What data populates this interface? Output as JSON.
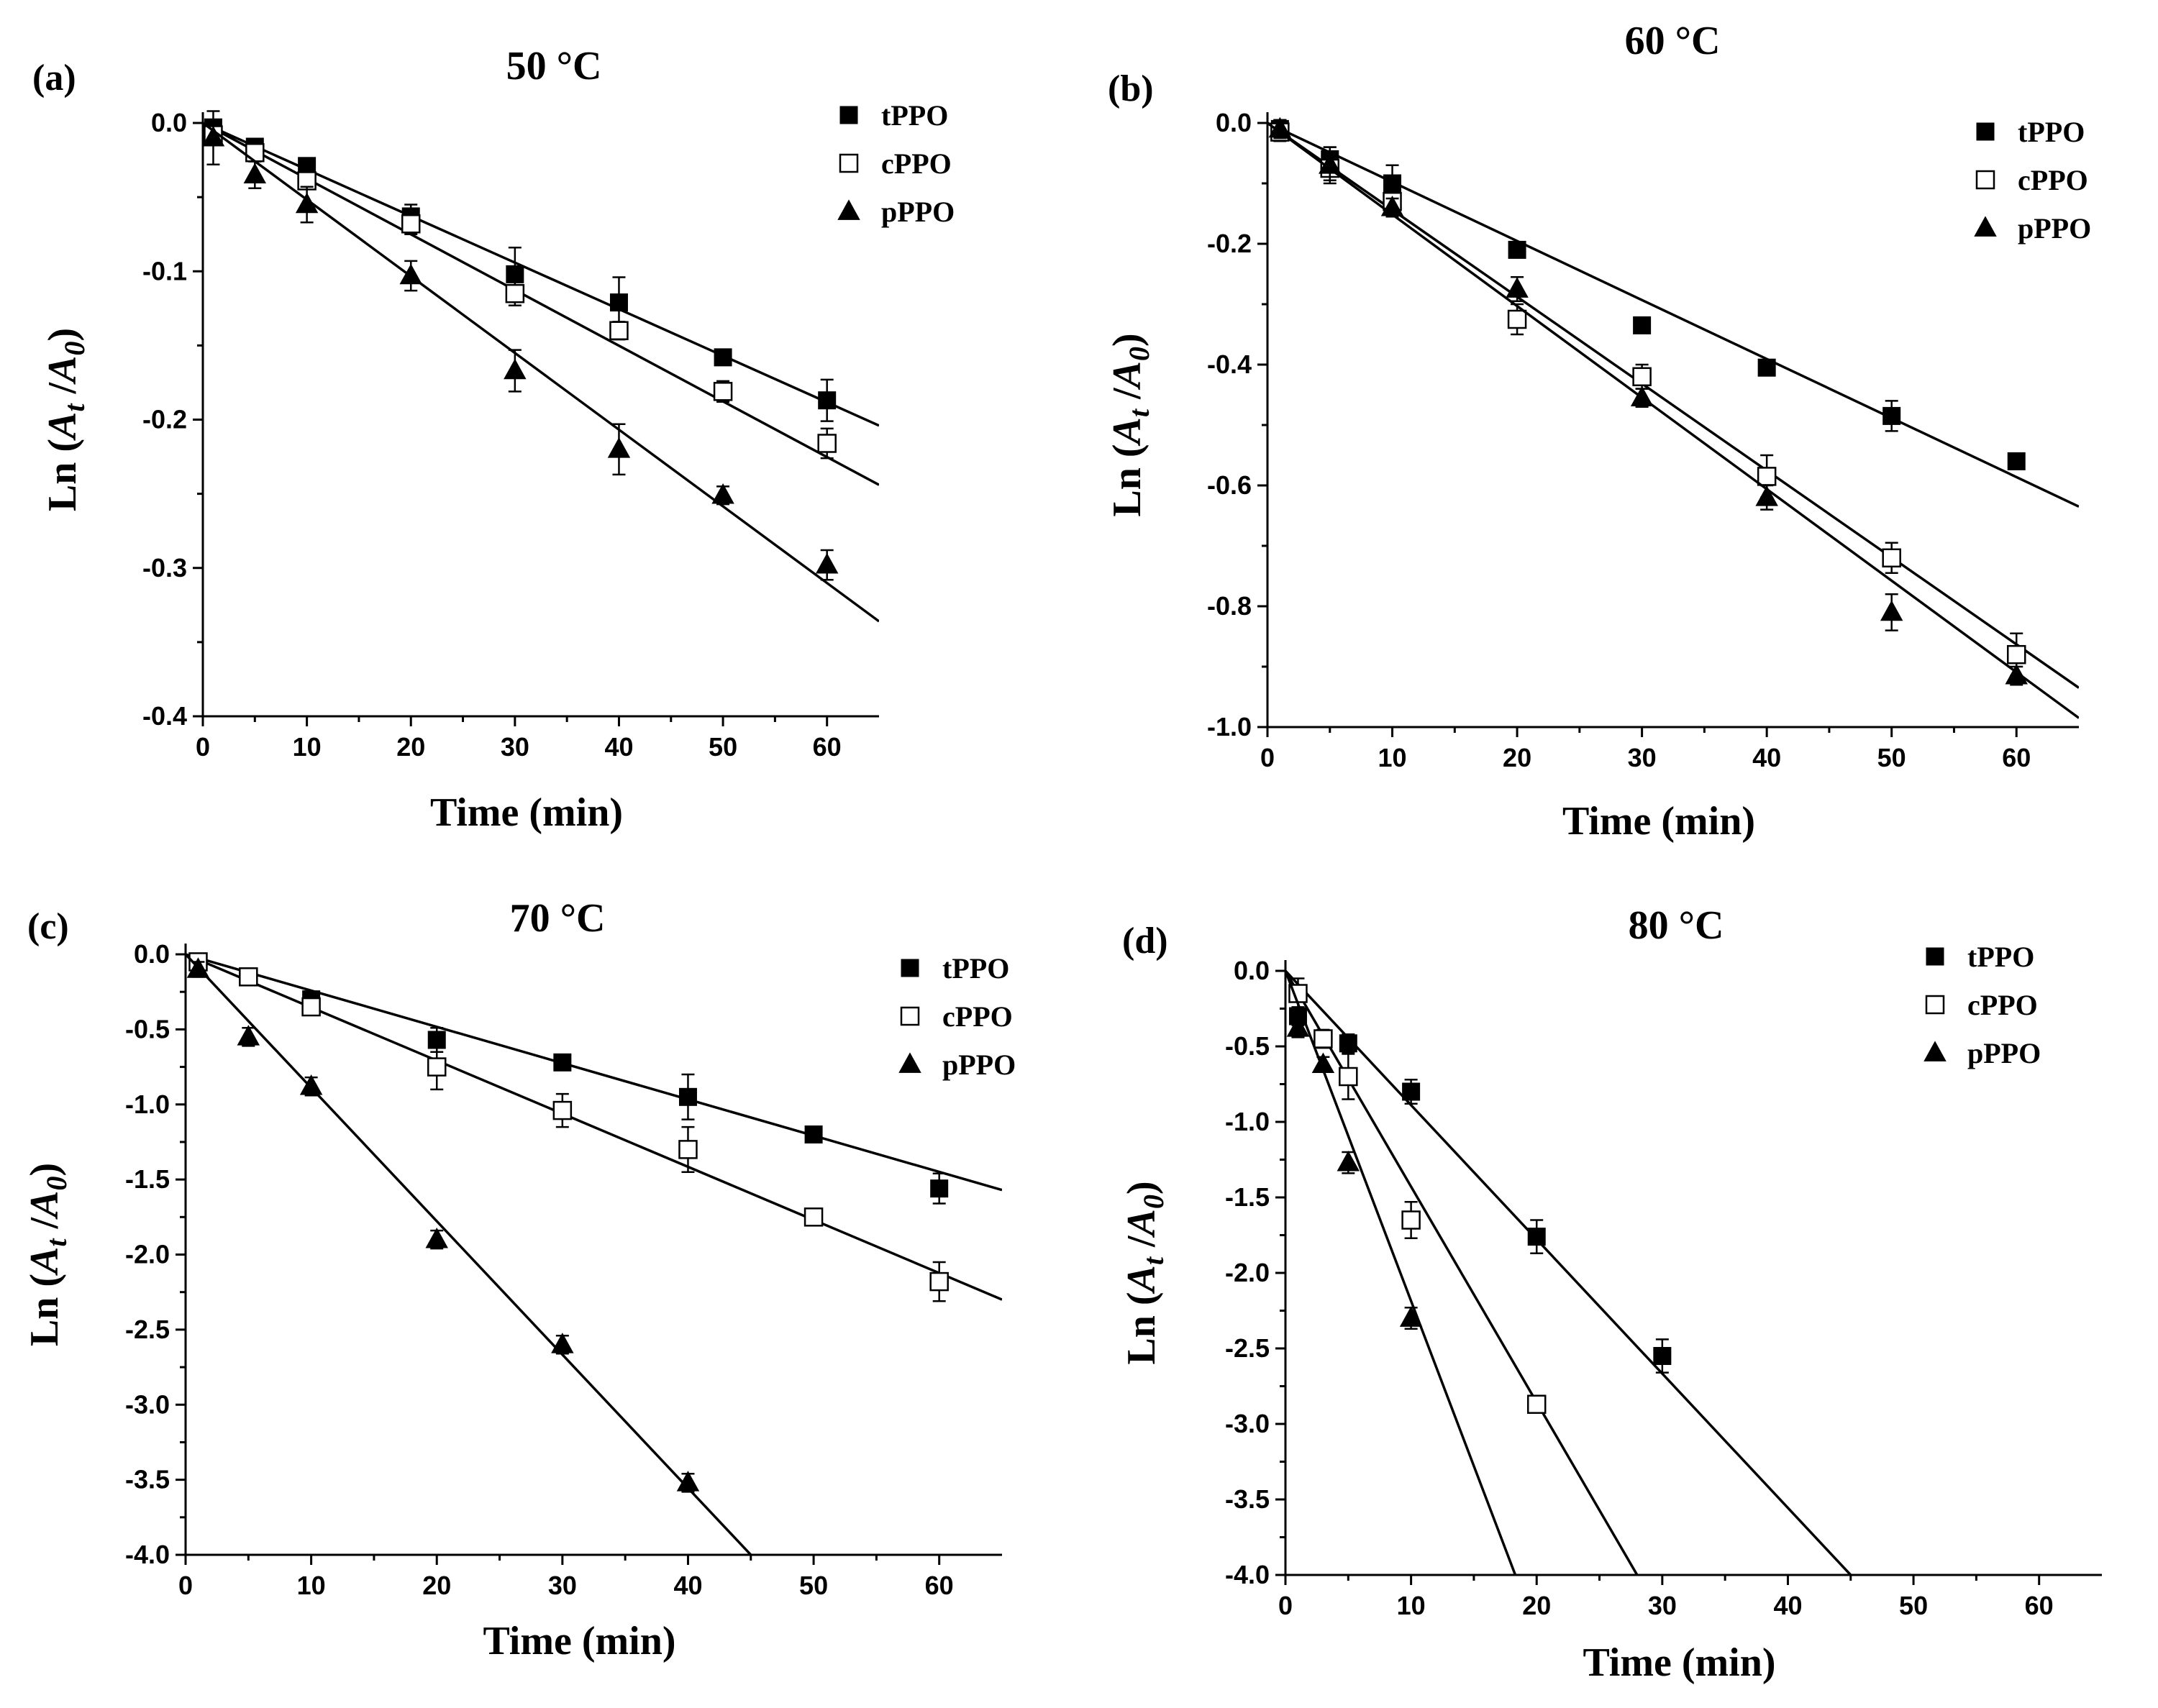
{
  "figure": {
    "series_styles": {
      "tPPO": {
        "marker": "filled-square",
        "color": "#000000"
      },
      "cPPO": {
        "marker": "open-square",
        "color": "#000000"
      },
      "pPPO": {
        "marker": "filled-triangle",
        "color": "#000000"
      }
    }
  },
  "chart_data": [
    {
      "panel": "(a)",
      "type": "scatter",
      "title": "50 °C",
      "xlabel": "Time (min)",
      "ylabel": "Ln (At /A0)",
      "xlim": [
        0,
        65
      ],
      "ylim": [
        -0.4,
        0.0
      ],
      "xticks": [
        0,
        10,
        20,
        30,
        40,
        50,
        60
      ],
      "yticks": [
        0.0,
        -0.1,
        -0.2,
        -0.3,
        -0.4
      ],
      "ytick_labels": [
        "0.0",
        "-0.1",
        "-0.2",
        "-0.3",
        "-0.4"
      ],
      "legend_position": "top-right",
      "series": [
        {
          "name": "tPPO",
          "x": [
            1,
            5,
            10,
            20,
            30,
            40,
            50,
            60
          ],
          "y": [
            -0.003,
            -0.016,
            -0.029,
            -0.063,
            -0.102,
            -0.121,
            -0.158,
            -0.187
          ],
          "err": [
            0.004,
            0.003,
            0.004,
            0.008,
            0.018,
            0.017,
            0.004,
            0.014
          ],
          "fit": {
            "x": [
              0,
              65
            ],
            "y": [
              0.0,
              -0.204
            ]
          }
        },
        {
          "name": "cPPO",
          "x": [
            1,
            5,
            10,
            20,
            30,
            40,
            50,
            60
          ],
          "y": [
            -0.008,
            -0.02,
            -0.039,
            -0.068,
            -0.115,
            -0.14,
            -0.181,
            -0.216
          ],
          "err": [
            0.005,
            0.004,
            0.005,
            0.007,
            0.008,
            0.006,
            0.007,
            0.01
          ],
          "fit": {
            "x": [
              0,
              65
            ],
            "y": [
              0.0,
              -0.244
            ]
          }
        },
        {
          "name": "pPPO",
          "x": [
            1,
            5,
            10,
            20,
            30,
            40,
            50,
            60
          ],
          "y": [
            -0.01,
            -0.035,
            -0.055,
            -0.103,
            -0.167,
            -0.22,
            -0.251,
            -0.298
          ],
          "err": [
            0.018,
            0.009,
            0.012,
            0.01,
            0.014,
            0.017,
            0.006,
            0.01
          ],
          "fit": {
            "x": [
              0,
              65
            ],
            "y": [
              0.0,
              -0.336
            ]
          }
        }
      ]
    },
    {
      "panel": "(b)",
      "type": "scatter",
      "title": "60 °C",
      "xlabel": "Time (min)",
      "ylabel": "Ln (At /A0)",
      "xlim": [
        0,
        65
      ],
      "ylim": [
        -1.0,
        0.0
      ],
      "xticks": [
        0,
        10,
        20,
        30,
        40,
        50,
        60
      ],
      "yticks": [
        0.0,
        -0.2,
        -0.4,
        -0.6,
        -0.8,
        -1.0
      ],
      "ytick_labels": [
        "0.0",
        "-0.2",
        "-0.4",
        "-0.6",
        "-0.8",
        "-1.0"
      ],
      "legend_position": "top-right",
      "series": [
        {
          "name": "tPPO",
          "x": [
            1,
            5,
            10,
            20,
            30,
            40,
            50,
            60
          ],
          "y": [
            -0.01,
            -0.06,
            -0.1,
            -0.21,
            -0.335,
            -0.405,
            -0.485,
            -0.56
          ],
          "err": [
            0.015,
            0.02,
            0.03,
            0.01,
            0.01,
            0.01,
            0.025,
            0.01
          ],
          "fit": {
            "x": [
              0,
              65
            ],
            "y": [
              0.0,
              -0.635
            ]
          }
        },
        {
          "name": "cPPO",
          "x": [
            1,
            5,
            10,
            20,
            30,
            40,
            50,
            60
          ],
          "y": [
            -0.015,
            -0.075,
            -0.13,
            -0.325,
            -0.42,
            -0.585,
            -0.72,
            -0.88
          ],
          "err": [
            0.015,
            0.02,
            0.02,
            0.025,
            0.02,
            0.035,
            0.025,
            0.035
          ],
          "fit": {
            "x": [
              0,
              65
            ],
            "y": [
              0.0,
              -0.935
            ]
          }
        },
        {
          "name": "pPPO",
          "x": [
            1,
            5,
            10,
            20,
            30,
            40,
            50,
            60
          ],
          "y": [
            -0.01,
            -0.07,
            -0.14,
            -0.275,
            -0.455,
            -0.62,
            -0.81,
            -0.915
          ],
          "err": [
            0.015,
            0.03,
            0.015,
            0.02,
            0.015,
            0.02,
            0.03,
            0.015
          ],
          "fit": {
            "x": [
              0,
              65
            ],
            "y": [
              0.0,
              -0.985
            ]
          }
        }
      ]
    },
    {
      "panel": "(c)",
      "type": "scatter",
      "title": "70 °C",
      "xlabel": "Time (min)",
      "ylabel": "Ln (At /A0)",
      "xlim": [
        0,
        65
      ],
      "ylim": [
        -4.0,
        0.0
      ],
      "xticks": [
        0,
        10,
        20,
        30,
        40,
        50,
        60
      ],
      "yticks": [
        0.0,
        -0.5,
        -1.0,
        -1.5,
        -2.0,
        -2.5,
        -3.0,
        -3.5,
        -4.0
      ],
      "ytick_labels": [
        "0.0",
        "-0.5",
        "-1.0",
        "-1.5",
        "-2.0",
        "-2.5",
        "-3.0",
        "-3.5",
        "-4.0"
      ],
      "legend_position": "top-right",
      "series": [
        {
          "name": "tPPO",
          "x": [
            1,
            5,
            10,
            20,
            30,
            40,
            50,
            60
          ],
          "y": [
            -0.05,
            -0.15,
            -0.3,
            -0.57,
            -0.72,
            -0.95,
            -1.2,
            -1.56
          ],
          "err": [
            0.04,
            0.04,
            0.05,
            0.08,
            0.04,
            0.15,
            0.03,
            0.1
          ],
          "fit": {
            "x": [
              0,
              65
            ],
            "y": [
              0.0,
              -1.57
            ]
          }
        },
        {
          "name": "cPPO",
          "x": [
            1,
            5,
            10,
            20,
            30,
            40,
            50,
            60
          ],
          "y": [
            -0.05,
            -0.15,
            -0.35,
            -0.75,
            -1.04,
            -1.3,
            -1.75,
            -2.18
          ],
          "err": [
            0.05,
            0.05,
            0.05,
            0.15,
            0.11,
            0.15,
            0.04,
            0.13
          ],
          "fit": {
            "x": [
              0,
              65
            ],
            "y": [
              0.0,
              -2.3
            ]
          }
        },
        {
          "name": "pPPO",
          "x": [
            1,
            5,
            10,
            20,
            30,
            40
          ],
          "y": [
            -0.1,
            -0.55,
            -0.88,
            -1.9,
            -2.6,
            -3.52
          ],
          "err": [
            0.05,
            0.06,
            0.06,
            0.06,
            0.06,
            0.06
          ],
          "fit": {
            "x": [
              0,
              45
            ],
            "y": [
              0.0,
              -4.0
            ]
          }
        }
      ]
    },
    {
      "panel": "(d)",
      "type": "scatter",
      "title": "80 °C",
      "xlabel": "Time (min)",
      "ylabel": "Ln (At /A0)",
      "xlim": [
        0,
        65
      ],
      "ylim": [
        -4.0,
        0.0
      ],
      "xticks": [
        0,
        10,
        20,
        30,
        40,
        50,
        60
      ],
      "yticks": [
        0.0,
        -0.5,
        -1.0,
        -1.5,
        -2.0,
        -2.5,
        -3.0,
        -3.5,
        -4.0
      ],
      "ytick_labels": [
        "0.0",
        "-0.5",
        "-1.0",
        "-1.5",
        "-2.0",
        "-2.5",
        "-3.0",
        "-3.5",
        "-4.0"
      ],
      "legend_position": "top-right",
      "series": [
        {
          "name": "tPPO",
          "x": [
            1,
            5,
            10,
            20,
            30
          ],
          "y": [
            -0.3,
            -0.48,
            -0.8,
            -1.76,
            -2.55
          ],
          "err": [
            0.06,
            0.06,
            0.08,
            0.11,
            0.11
          ],
          "fit": {
            "x": [
              0,
              45
            ],
            "y": [
              0.0,
              -4.0
            ]
          }
        },
        {
          "name": "cPPO",
          "x": [
            1,
            3,
            5,
            10,
            20
          ],
          "y": [
            -0.15,
            -0.45,
            -0.7,
            -1.65,
            -2.87
          ],
          "err": [
            0.1,
            0.06,
            0.15,
            0.12,
            0.04
          ],
          "fit": {
            "x": [
              0,
              28
            ],
            "y": [
              0.0,
              -4.0
            ]
          }
        },
        {
          "name": "pPPO",
          "x": [
            1,
            3,
            5,
            10
          ],
          "y": [
            -0.38,
            -0.62,
            -1.27,
            -2.3
          ],
          "err": [
            0.06,
            0.05,
            0.07,
            0.07
          ],
          "fit": {
            "x": [
              0,
              18.3
            ],
            "y": [
              0.0,
              -4.0
            ]
          }
        }
      ]
    }
  ]
}
